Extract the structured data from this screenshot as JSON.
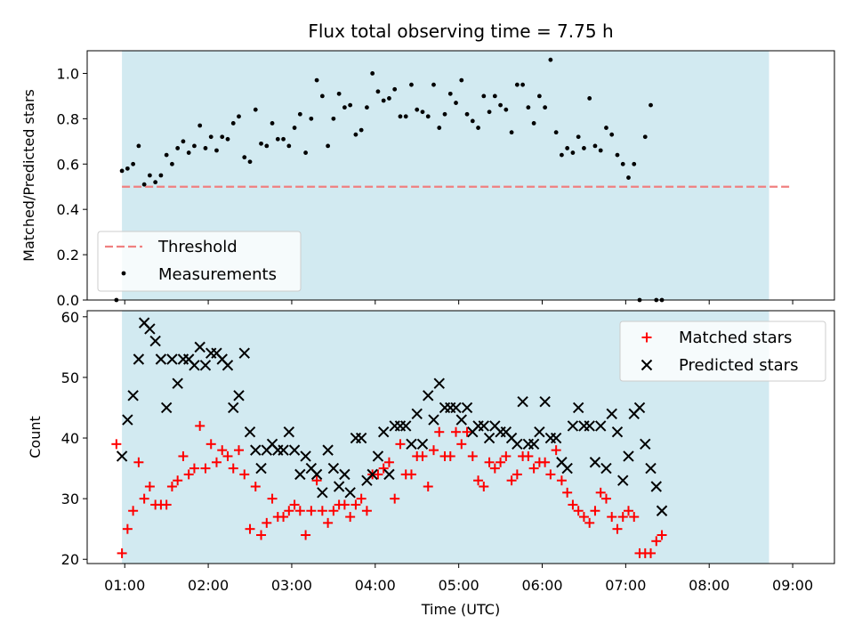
{
  "title": "Flux total observing time = 7.75 h",
  "colors": {
    "shade": "#add8e6",
    "threshold": "#f08080",
    "matched": "#ff0000",
    "predicted": "#000000",
    "measurements": "#000000"
  },
  "chart_data": [
    {
      "type": "scatter",
      "panel": "top",
      "ylabel": "Matched/Predicted stars",
      "xlim": [
        "00:33",
        "09:30"
      ],
      "ylim": [
        0,
        1.1
      ],
      "yticks": [
        0.0,
        0.2,
        0.4,
        0.6,
        0.8,
        1.0
      ],
      "ytick_labels": [
        "0.0",
        "0.2",
        "0.4",
        "0.6",
        "0.8",
        "1.0"
      ],
      "shaded_interval": [
        "00:58",
        "08:43"
      ],
      "legend": {
        "location": "lower left",
        "entries": [
          "Threshold",
          "Measurements"
        ]
      },
      "series": [
        {
          "name": "Threshold",
          "kind": "dashed-line",
          "x": [
            "00:58",
            "09:00"
          ],
          "y": [
            0.5,
            0.5
          ]
        },
        {
          "name": "Measurements",
          "kind": "dots",
          "points": [
            [
              "00:54",
              0.0
            ],
            [
              "00:58",
              0.57
            ],
            [
              "01:02",
              0.58
            ],
            [
              "01:06",
              0.6
            ],
            [
              "01:10",
              0.68
            ],
            [
              "01:14",
              0.51
            ],
            [
              "01:18",
              0.55
            ],
            [
              "01:22",
              0.52
            ],
            [
              "01:26",
              0.55
            ],
            [
              "01:30",
              0.64
            ],
            [
              "01:34",
              0.6
            ],
            [
              "01:38",
              0.67
            ],
            [
              "01:42",
              0.7
            ],
            [
              "01:46",
              0.65
            ],
            [
              "01:50",
              0.68
            ],
            [
              "01:54",
              0.77
            ],
            [
              "01:58",
              0.67
            ],
            [
              "02:02",
              0.72
            ],
            [
              "02:06",
              0.66
            ],
            [
              "02:10",
              0.72
            ],
            [
              "02:14",
              0.71
            ],
            [
              "02:18",
              0.78
            ],
            [
              "02:22",
              0.81
            ],
            [
              "02:26",
              0.63
            ],
            [
              "02:30",
              0.61
            ],
            [
              "02:34",
              0.84
            ],
            [
              "02:38",
              0.69
            ],
            [
              "02:42",
              0.68
            ],
            [
              "02:46",
              0.78
            ],
            [
              "02:50",
              0.71
            ],
            [
              "02:54",
              0.71
            ],
            [
              "02:58",
              0.68
            ],
            [
              "03:02",
              0.76
            ],
            [
              "03:06",
              0.82
            ],
            [
              "03:10",
              0.65
            ],
            [
              "03:14",
              0.8
            ],
            [
              "03:18",
              0.97
            ],
            [
              "03:22",
              0.9
            ],
            [
              "03:26",
              0.68
            ],
            [
              "03:30",
              0.8
            ],
            [
              "03:34",
              0.91
            ],
            [
              "03:38",
              0.85
            ],
            [
              "03:42",
              0.86
            ],
            [
              "03:46",
              0.73
            ],
            [
              "03:50",
              0.75
            ],
            [
              "03:54",
              0.85
            ],
            [
              "03:58",
              1.0
            ],
            [
              "04:02",
              0.92
            ],
            [
              "04:06",
              0.88
            ],
            [
              "04:10",
              0.89
            ],
            [
              "04:14",
              0.93
            ],
            [
              "04:18",
              0.81
            ],
            [
              "04:22",
              0.81
            ],
            [
              "04:26",
              0.95
            ],
            [
              "04:30",
              0.84
            ],
            [
              "04:34",
              0.83
            ],
            [
              "04:38",
              0.81
            ],
            [
              "04:42",
              0.95
            ],
            [
              "04:46",
              0.76
            ],
            [
              "04:50",
              0.82
            ],
            [
              "04:54",
              0.91
            ],
            [
              "04:58",
              0.87
            ],
            [
              "05:02",
              0.97
            ],
            [
              "05:06",
              0.82
            ],
            [
              "05:10",
              0.79
            ],
            [
              "05:14",
              0.76
            ],
            [
              "05:18",
              0.9
            ],
            [
              "05:22",
              0.83
            ],
            [
              "05:26",
              0.9
            ],
            [
              "05:30",
              0.86
            ],
            [
              "05:34",
              0.84
            ],
            [
              "05:38",
              0.74
            ],
            [
              "05:42",
              0.95
            ],
            [
              "05:46",
              0.95
            ],
            [
              "05:50",
              0.85
            ],
            [
              "05:54",
              0.78
            ],
            [
              "05:58",
              0.9
            ],
            [
              "06:02",
              0.85
            ],
            [
              "06:06",
              1.06
            ],
            [
              "06:10",
              0.74
            ],
            [
              "06:14",
              0.64
            ],
            [
              "06:18",
              0.67
            ],
            [
              "06:22",
              0.65
            ],
            [
              "06:26",
              0.72
            ],
            [
              "06:30",
              0.67
            ],
            [
              "06:34",
              0.89
            ],
            [
              "06:38",
              0.68
            ],
            [
              "06:42",
              0.66
            ],
            [
              "06:46",
              0.76
            ],
            [
              "06:50",
              0.73
            ],
            [
              "06:54",
              0.64
            ],
            [
              "06:58",
              0.6
            ],
            [
              "07:02",
              0.54
            ],
            [
              "07:06",
              0.6
            ],
            [
              "07:10",
              0.0
            ],
            [
              "07:14",
              0.72
            ],
            [
              "07:18",
              0.86
            ],
            [
              "07:22",
              0.0
            ],
            [
              "07:26",
              0.0
            ]
          ]
        }
      ]
    },
    {
      "type": "scatter",
      "panel": "bottom",
      "xlabel": "Time (UTC)",
      "ylabel": "Count",
      "xlim": [
        "00:33",
        "09:30"
      ],
      "ylim": [
        19.3,
        61
      ],
      "xticks": [
        "01:00",
        "02:00",
        "03:00",
        "04:00",
        "05:00",
        "06:00",
        "07:00",
        "08:00",
        "09:00"
      ],
      "yticks": [
        20,
        30,
        40,
        50,
        60
      ],
      "ytick_labels": [
        "20",
        "30",
        "40",
        "50",
        "60"
      ],
      "shaded_interval": [
        "00:58",
        "08:43"
      ],
      "legend": {
        "location": "upper right",
        "entries": [
          "Matched stars",
          "Predicted stars"
        ]
      },
      "x": [
        "00:54",
        "00:58",
        "01:02",
        "01:06",
        "01:10",
        "01:14",
        "01:18",
        "01:22",
        "01:26",
        "01:30",
        "01:34",
        "01:38",
        "01:42",
        "01:46",
        "01:50",
        "01:54",
        "01:58",
        "02:02",
        "02:06",
        "02:10",
        "02:14",
        "02:18",
        "02:22",
        "02:26",
        "02:30",
        "02:34",
        "02:38",
        "02:42",
        "02:46",
        "02:50",
        "02:54",
        "02:58",
        "03:02",
        "03:06",
        "03:10",
        "03:14",
        "03:18",
        "03:22",
        "03:26",
        "03:30",
        "03:34",
        "03:38",
        "03:42",
        "03:46",
        "03:50",
        "03:54",
        "03:58",
        "04:02",
        "04:06",
        "04:10",
        "04:14",
        "04:18",
        "04:22",
        "04:26",
        "04:30",
        "04:34",
        "04:38",
        "04:42",
        "04:46",
        "04:50",
        "04:54",
        "04:58",
        "05:02",
        "05:06",
        "05:10",
        "05:14",
        "05:18",
        "05:22",
        "05:26",
        "05:30",
        "05:34",
        "05:38",
        "05:42",
        "05:46",
        "05:50",
        "05:54",
        "05:58",
        "06:02",
        "06:06",
        "06:10",
        "06:14",
        "06:18",
        "06:22",
        "06:26",
        "06:30",
        "06:34",
        "06:38",
        "06:42",
        "06:46",
        "06:50",
        "06:54",
        "06:58",
        "07:02",
        "07:06",
        "07:10",
        "07:14",
        "07:18",
        "07:22",
        "07:26"
      ],
      "series": [
        {
          "name": "Matched stars",
          "marker": "plus",
          "values": [
            39,
            21,
            25,
            28,
            36,
            30,
            32,
            29,
            29,
            29,
            32,
            33,
            37,
            34,
            35,
            42,
            35,
            39,
            36,
            38,
            37,
            35,
            38,
            34,
            25,
            32,
            24,
            26,
            30,
            27,
            27,
            28,
            29,
            28,
            24,
            28,
            33,
            28,
            26,
            28,
            29,
            29,
            27,
            29,
            30,
            28,
            34,
            34,
            35,
            36,
            30,
            39,
            34,
            34,
            37,
            37,
            32,
            38,
            41,
            37,
            37,
            41,
            39,
            41,
            37,
            33,
            32,
            36,
            35,
            36,
            37,
            33,
            34,
            37,
            37,
            35,
            36,
            36,
            34,
            38,
            33,
            31,
            29,
            28,
            27,
            26,
            28,
            31,
            30,
            27,
            25,
            27,
            28,
            27,
            21,
            21,
            21,
            23,
            24
          ]
        },
        {
          "name": "Predicted stars",
          "marker": "x",
          "values": [
            null,
            37,
            43,
            47,
            53,
            59,
            58,
            56,
            53,
            45,
            53,
            49,
            53,
            53,
            52,
            55,
            52,
            54,
            54,
            53,
            52,
            45,
            47,
            54,
            41,
            38,
            35,
            38,
            39,
            38,
            38,
            41,
            38,
            34,
            37,
            35,
            34,
            31,
            38,
            35,
            32,
            34,
            31,
            40,
            40,
            33,
            34,
            37,
            41,
            34,
            42,
            42,
            42,
            39,
            44,
            39,
            47,
            43,
            49,
            45,
            45,
            45,
            43,
            45,
            41,
            42,
            42,
            40,
            42,
            41,
            41,
            40,
            39,
            46,
            39,
            39,
            41,
            46,
            40,
            40,
            36,
            35,
            42,
            45,
            42,
            42,
            36,
            42,
            35,
            44,
            41,
            33,
            37,
            44,
            45,
            39,
            35,
            32,
            28
          ]
        }
      ]
    }
  ]
}
